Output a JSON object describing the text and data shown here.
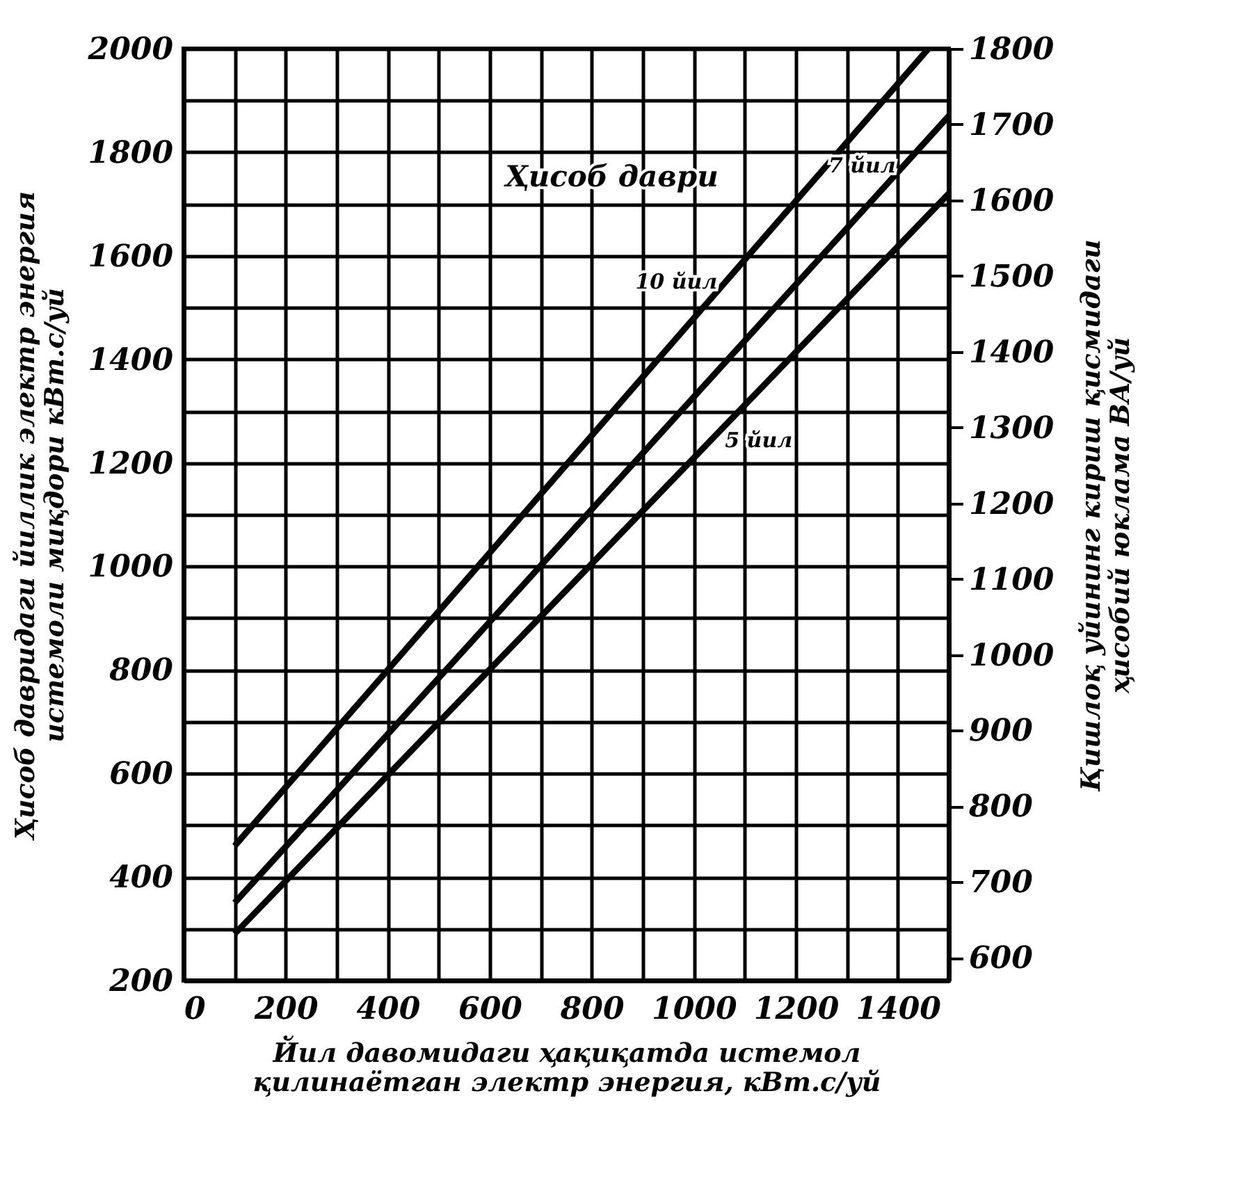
{
  "chart_data": {
    "type": "line",
    "xlabel": "Йил давомидаги ҳақиқатда истемол\nқилинаётган электр энергия, кВт.с/уй",
    "ylabel": "Ҳисоб давридаги йиллик электр энергия\nистемоли миқдори кВт.с/уй",
    "y2label": "Қишлоқ уйининг кириш қисмидаги\nҳисобий юклама ВА/уй",
    "legend_title": "Ҳисоб даври",
    "xlim": [
      0,
      1500
    ],
    "xticks": [
      0,
      {
        "value": 100,
        "label": null
      },
      200,
      {
        "value": 300,
        "label": null
      },
      400,
      {
        "value": 500,
        "label": null
      },
      600,
      {
        "value": 700,
        "label": null
      },
      800,
      {
        "value": 900,
        "label": null
      },
      1000,
      {
        "value": 1100,
        "label": null
      },
      1200,
      {
        "value": 1300,
        "label": null
      },
      1400,
      {
        "value": 1500,
        "label": null
      }
    ],
    "ylim": [
      200,
      2000
    ],
    "yticks": [
      200,
      {
        "value": 300,
        "label": null
      },
      400,
      {
        "value": 500,
        "label": null
      },
      600,
      {
        "value": 700,
        "label": null
      },
      800,
      {
        "value": 900,
        "label": null
      },
      1000,
      {
        "value": 1100,
        "label": null
      },
      1200,
      {
        "value": 1300,
        "label": null
      },
      1400,
      {
        "value": 1500,
        "label": null
      },
      1600,
      {
        "value": 1700,
        "label": null
      },
      1800,
      {
        "value": 1900,
        "label": null
      },
      2000
    ],
    "y2lim": [
      570,
      1800
    ],
    "y2ticks": [
      600,
      700,
      800,
      900,
      1000,
      1100,
      1200,
      1300,
      1400,
      1500,
      1600,
      1700,
      1800
    ],
    "grid": true,
    "series": [
      {
        "name": "10 йил",
        "color": "#000000",
        "x": [
          100,
          1460
        ],
        "values": [
          460,
          2000
        ]
      },
      {
        "name": "7 йил",
        "color": "#000000",
        "x": [
          100,
          1500
        ],
        "values": [
          350,
          1870
        ]
      },
      {
        "name": "5 йил",
        "color": "#000000",
        "x": [
          100,
          1500
        ],
        "values": [
          290,
          1720
        ]
      }
    ]
  }
}
